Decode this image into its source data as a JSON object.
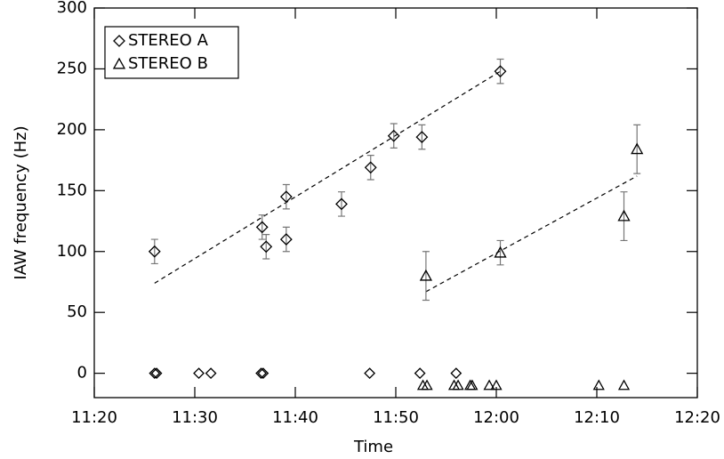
{
  "chart_data": {
    "type": "scatter",
    "x_label": "Time",
    "y_label": "IAW frequency (Hz)",
    "xlim": [
      680,
      740
    ],
    "xticks": [
      {
        "value": 680,
        "label": "11:20"
      },
      {
        "value": 690,
        "label": "11:30"
      },
      {
        "value": 700,
        "label": "11:40"
      },
      {
        "value": 710,
        "label": "11:50"
      },
      {
        "value": 720,
        "label": "12:00"
      },
      {
        "value": 730,
        "label": "12:10"
      },
      {
        "value": 740,
        "label": "12:20"
      }
    ],
    "ylim": [
      -20,
      300
    ],
    "yticks": [
      0,
      50,
      100,
      150,
      200,
      250,
      300
    ],
    "legend": "upper left",
    "series": [
      {
        "name": "STEREO A",
        "marker": "diamond",
        "color": "#000000",
        "x": [
          686,
          696.7,
          697.1,
          699.1,
          699.1,
          704.6,
          707.5,
          709.8,
          712.6,
          720.4
        ],
        "values": [
          100,
          120,
          104,
          145,
          110,
          139,
          169,
          195,
          194,
          248
        ],
        "errors": [
          10,
          10,
          10,
          10,
          10,
          10,
          10,
          10,
          10,
          10
        ],
        "fit": {
          "x": [
            686,
            720.4
          ],
          "values": [
            74,
            248
          ]
        },
        "detections": {
          "x": [
            686,
            686.2,
            690.4,
            691.6,
            696.6,
            696.8,
            707.4,
            712.4,
            716
          ],
          "values": [
            0,
            0,
            0,
            0,
            0,
            0,
            0,
            0,
            0
          ]
        }
      },
      {
        "name": "STEREO B",
        "marker": "triangle",
        "color": "#000000",
        "x": [
          713,
          720.4,
          732.7,
          734
        ],
        "values": [
          80,
          99,
          129,
          184
        ],
        "errors": [
          20,
          10,
          20,
          20
        ],
        "fit": {
          "x": [
            713,
            734
          ],
          "values": [
            67,
            162
          ]
        },
        "detections": {
          "x": [
            712.7,
            713.1,
            715.8,
            716.2,
            717.4,
            717.6,
            719.3,
            720,
            730.2,
            732.7
          ],
          "values": [
            -10,
            -10,
            -10,
            -10,
            -10,
            -10,
            -10,
            -10,
            -10,
            -10
          ]
        }
      }
    ]
  }
}
